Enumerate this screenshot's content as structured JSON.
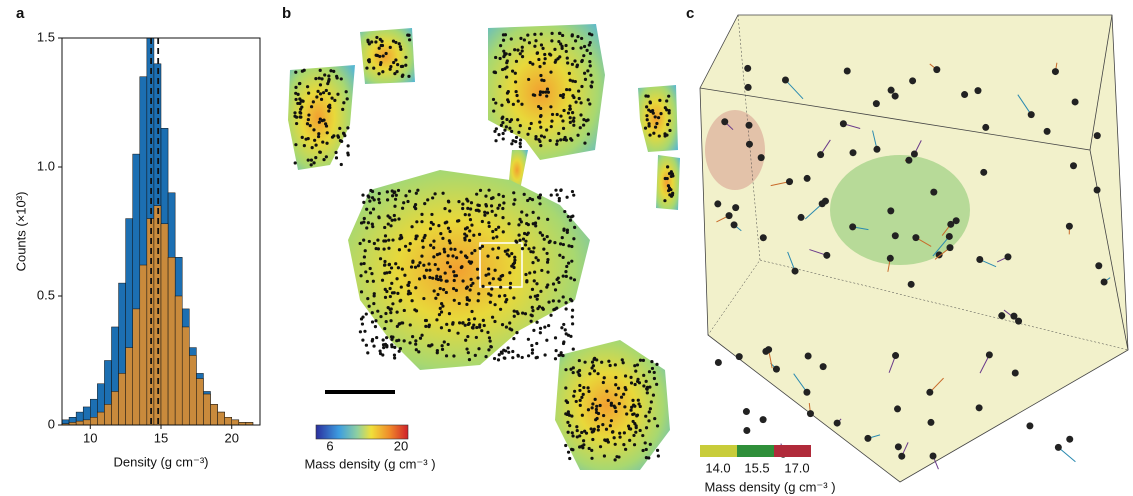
{
  "panel_a": {
    "label": "a",
    "chart_data": {
      "type": "histogram",
      "xlabel": "Density (g cm⁻³)",
      "ylabel": "Counts (×10³)",
      "bins": [
        8,
        8.5,
        9,
        9.5,
        10,
        10.5,
        11,
        11.5,
        12,
        12.5,
        13,
        13.5,
        14,
        14.5,
        15,
        15.5,
        16,
        16.5,
        17,
        17.5,
        18,
        18.5,
        19,
        19.5,
        20,
        20.5,
        21,
        21.5,
        22
      ],
      "series": [
        {
          "color": "#1c6fb2",
          "values": [
            0.02,
            0.03,
            0.05,
            0.07,
            0.1,
            0.16,
            0.25,
            0.38,
            0.55,
            0.8,
            1.05,
            1.35,
            1.5,
            1.4,
            1.15,
            0.9,
            0.65,
            0.45,
            0.3,
            0.2,
            0.13,
            0.08,
            0.05,
            0.03,
            0.02,
            0.01,
            0.01,
            0
          ]
        },
        {
          "color": "#c98a3c",
          "values": [
            0.005,
            0.01,
            0.015,
            0.02,
            0.03,
            0.05,
            0.08,
            0.13,
            0.2,
            0.3,
            0.45,
            0.62,
            0.8,
            0.85,
            0.78,
            0.65,
            0.5,
            0.38,
            0.27,
            0.18,
            0.12,
            0.08,
            0.05,
            0.03,
            0.02,
            0.01,
            0.01,
            0
          ]
        }
      ],
      "vlines": [
        14.3,
        14.8
      ],
      "xlim": [
        8,
        22
      ],
      "xticks": [
        10,
        15,
        20
      ],
      "ylim": [
        0,
        1.5
      ],
      "yticks": [
        0,
        0.5,
        {
          "value": 1.0,
          "label": "1.0"
        },
        1.5
      ]
    }
  },
  "panel_b": {
    "label": "b",
    "colorbar": {
      "min": "6",
      "max": "20",
      "label": "Mass density (g cm⁻³ )"
    }
  },
  "panel_c": {
    "label": "c",
    "legend": {
      "ticks": [
        "14.0",
        "15.5",
        "17.0"
      ],
      "label": "Mass density (g cm⁻³ )"
    }
  }
}
